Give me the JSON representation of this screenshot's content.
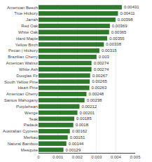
{
  "chart_data": {
    "type": "bar",
    "orientation": "horizontal",
    "categories": [
      "American Beech",
      "True Hickory",
      "Jarrah",
      "Red Oak",
      "White Oak",
      "Hard Maple",
      "Yellow Birch",
      "Pecan | Hickory",
      "Brazilian Cherry",
      "American Walnut",
      "White Ash",
      "Douglas Fir",
      "South Yellow Pine",
      "Heart Pine",
      "American Cherry",
      "Santos Mahogany",
      "Purpleheart",
      "Wenge",
      "Teak",
      "Padauk",
      "Australian Cypress",
      "Merbau",
      "Natural Bamboo",
      "Mesquite"
    ],
    "values": [
      0.00431,
      0.00411,
      0.00398,
      0.00369,
      0.00365,
      0.00355,
      0.00338,
      0.00315,
      0.003,
      0.00274,
      0.00274,
      0.00267,
      0.00265,
      0.00263,
      0.00248,
      0.00238,
      0.00212,
      0.00201,
      0.00185,
      0.0018,
      0.00162,
      0.00151,
      0.00144,
      0.00129
    ],
    "color": "#2d7a2d",
    "xlim": [
      0,
      0.005
    ],
    "xticks": [
      0,
      0.001,
      0.002,
      0.003,
      0.004,
      0.005
    ],
    "grid": true,
    "data_labels": true
  }
}
